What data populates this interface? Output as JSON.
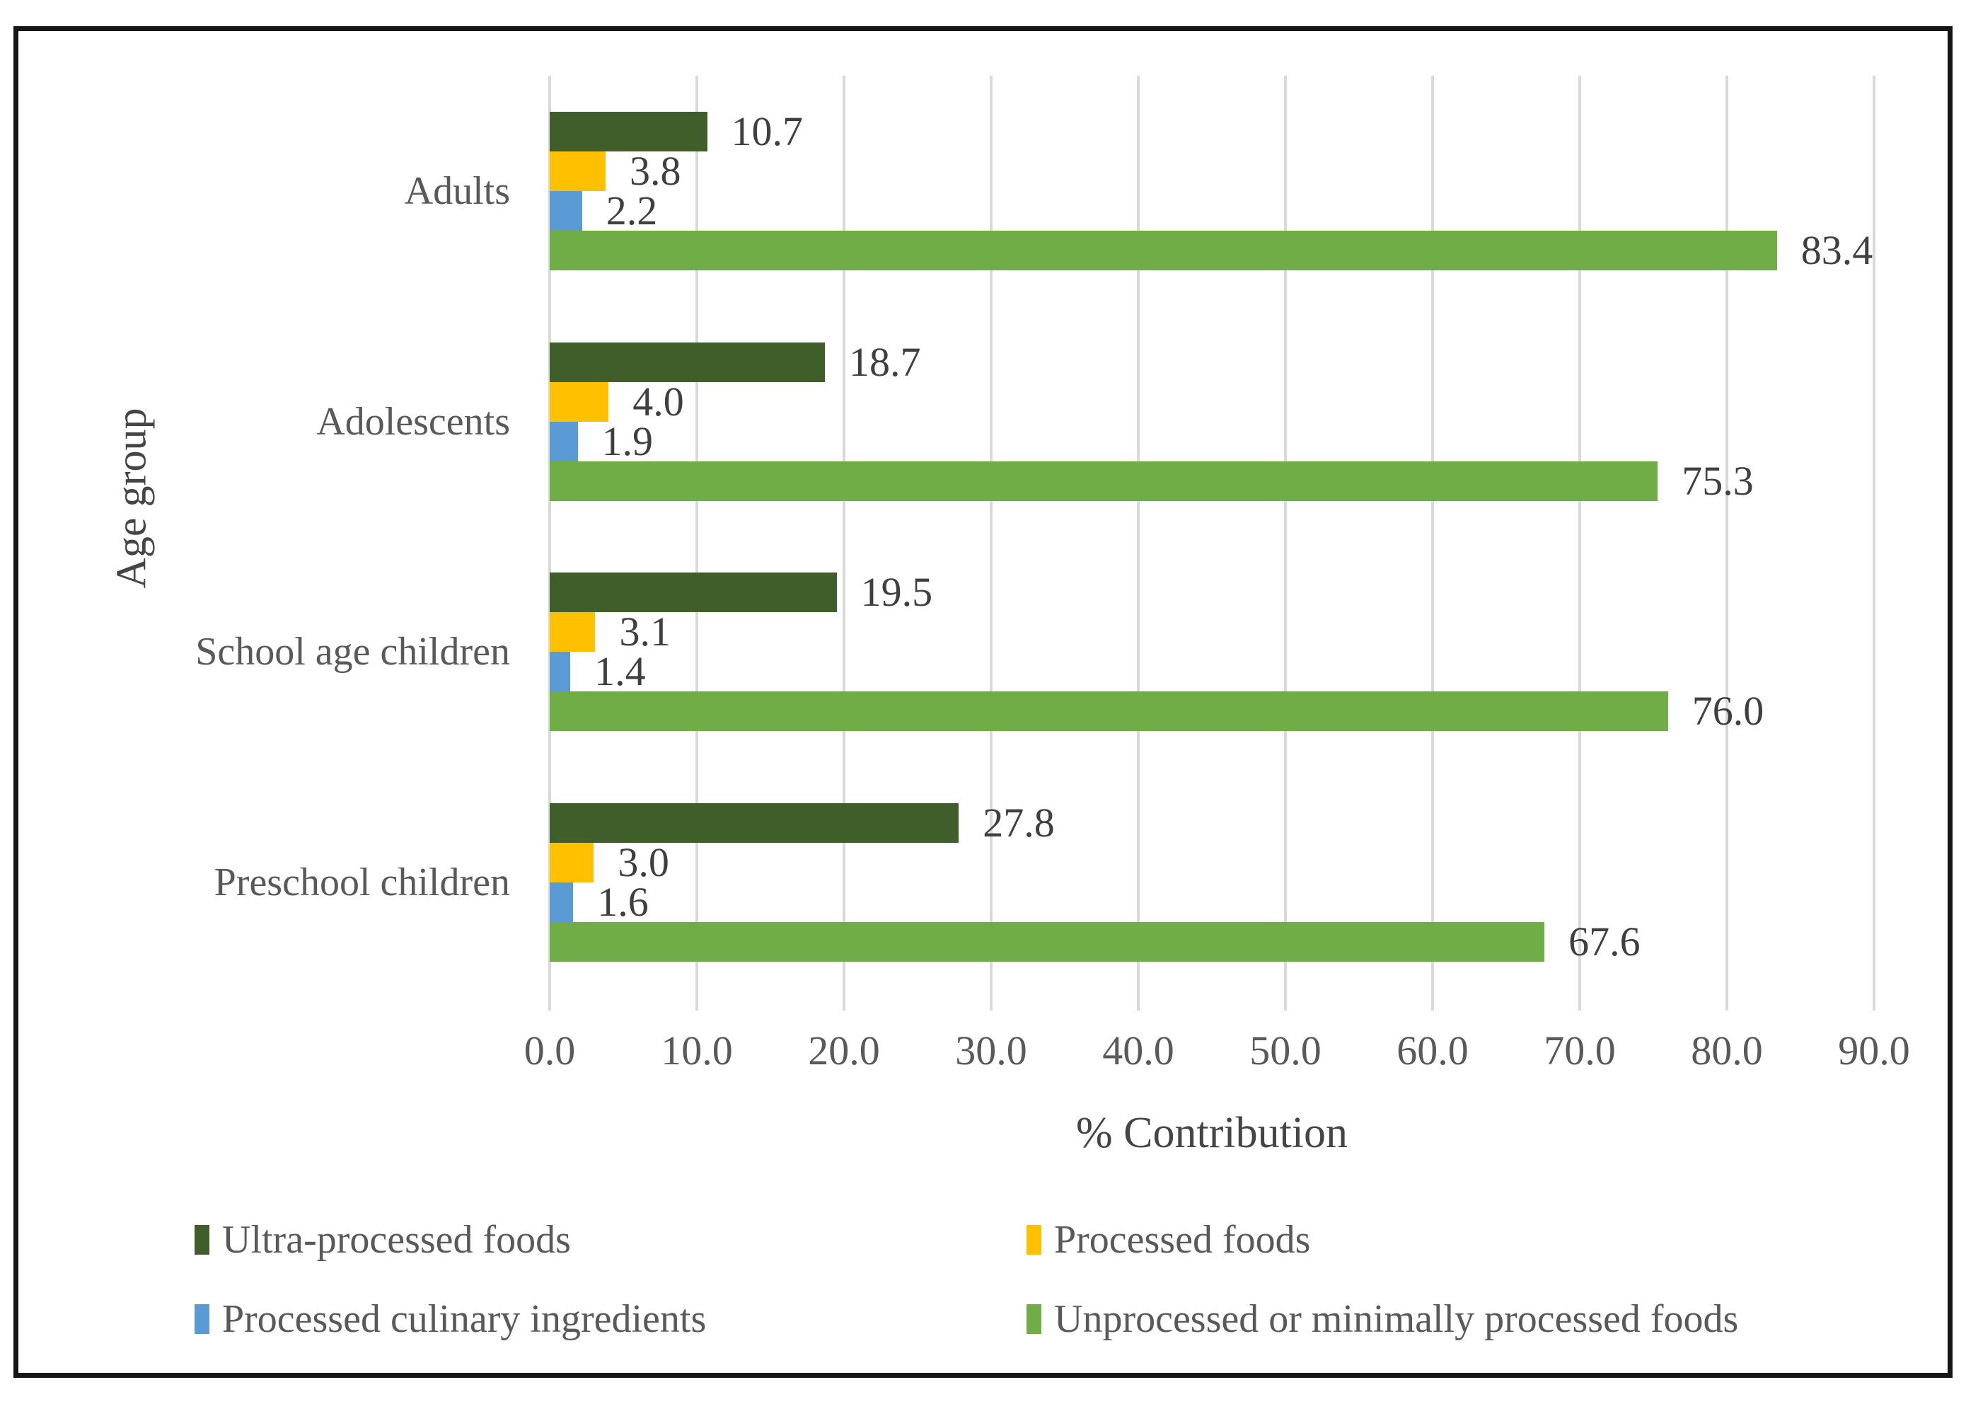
{
  "chart_data": {
    "type": "bar",
    "orientation": "horizontal",
    "title": "",
    "xlabel": "% Contribution",
    "ylabel": "Age group",
    "x_min": 0,
    "x_max": 90,
    "grid": "vertical",
    "gridline_color": "#d9d9d9",
    "legend_position": "bottom",
    "categories": [
      "Adults",
      "Adolescents",
      "School age children",
      "Preschool children"
    ],
    "x_ticks": [
      {
        "value": 0,
        "label": "0.0"
      },
      {
        "value": 10,
        "label": "10.0"
      },
      {
        "value": 20,
        "label": "20.0"
      },
      {
        "value": 30,
        "label": "30.0"
      },
      {
        "value": 40,
        "label": "40.0"
      },
      {
        "value": 50,
        "label": "50.0"
      },
      {
        "value": 60,
        "label": "60.0"
      },
      {
        "value": 70,
        "label": "70.0"
      },
      {
        "value": 80,
        "label": "80.0"
      },
      {
        "value": 90,
        "label": "90.0"
      }
    ],
    "series": [
      {
        "name": "Ultra-processed foods",
        "color": "#3f5e29",
        "values": [
          10.7,
          18.7,
          19.5,
          27.8
        ],
        "labels": [
          "10.7",
          "18.7",
          "19.5",
          "27.8"
        ]
      },
      {
        "name": "Processed foods",
        "color": "#ffc000",
        "values": [
          3.8,
          4.0,
          3.1,
          3.0
        ],
        "labels": [
          "3.8",
          "4.0",
          "3.1",
          "3.0"
        ]
      },
      {
        "name": "Processed culinary ingredients",
        "color": "#5b9bd5",
        "values": [
          2.2,
          1.9,
          1.4,
          1.6
        ],
        "labels": [
          "2.2",
          "1.9",
          "1.4",
          "1.6"
        ]
      },
      {
        "name": "Unprocessed or minimally processed foods",
        "color": "#70ad47",
        "values": [
          83.4,
          75.3,
          76.0,
          67.6
        ],
        "labels": [
          "83.4",
          "75.3",
          "76.0",
          "67.6"
        ]
      }
    ]
  }
}
